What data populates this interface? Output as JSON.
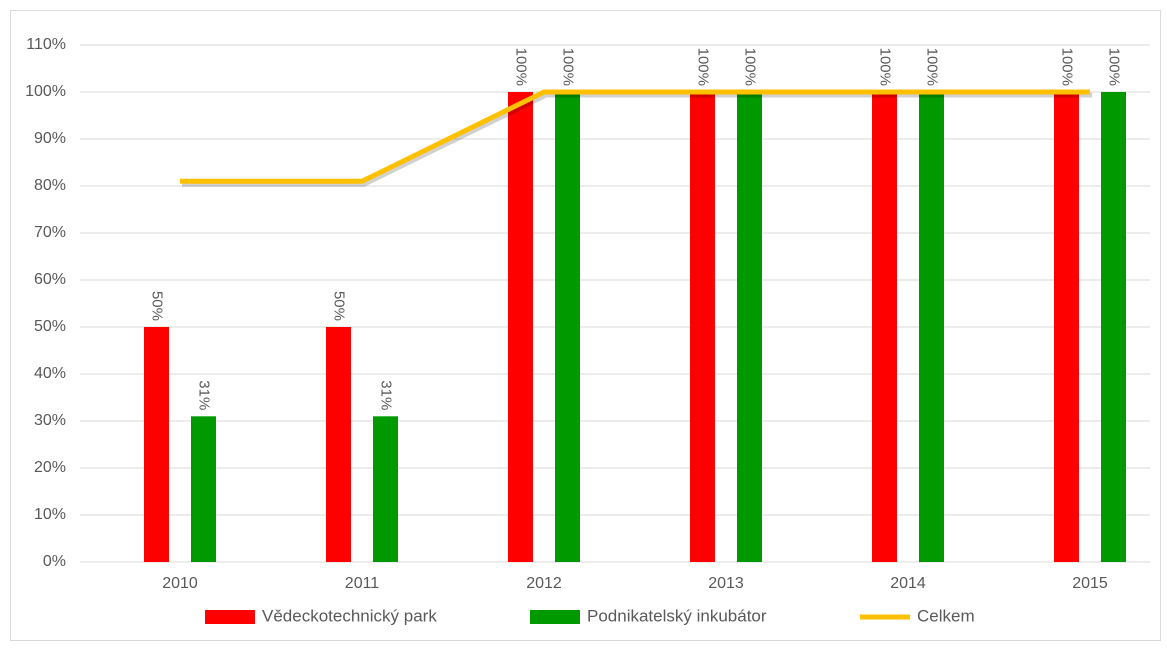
{
  "chart_data": {
    "type": "bar_line",
    "categories": [
      "2010",
      "2011",
      "2012",
      "2013",
      "2014",
      "2015"
    ],
    "series": [
      {
        "name": "Vědeckotechnický park",
        "type": "bar",
        "color": "#ff0000",
        "values": [
          50,
          50,
          100,
          100,
          100,
          100
        ],
        "value_labels": [
          "50%",
          "50%",
          "100%",
          "100%",
          "100%",
          "100%"
        ]
      },
      {
        "name": "Podnikatelský inkubátor",
        "type": "bar",
        "color": "#009900",
        "values": [
          31,
          31,
          100,
          100,
          100,
          100
        ],
        "value_labels": [
          "31%",
          "31%",
          "100%",
          "100%",
          "100%",
          "100%"
        ]
      },
      {
        "name": "Celkem",
        "type": "line",
        "color": "#ffc000",
        "values": [
          81,
          81,
          100,
          100,
          100,
          100
        ]
      }
    ],
    "ylim": [
      0,
      110
    ],
    "yticks": [
      {
        "value": 0,
        "label": "0%"
      },
      {
        "value": 10,
        "label": "10%"
      },
      {
        "value": 20,
        "label": "20%"
      },
      {
        "value": 30,
        "label": "30%"
      },
      {
        "value": 40,
        "label": "40%"
      },
      {
        "value": 50,
        "label": "50%"
      },
      {
        "value": 60,
        "label": "60%"
      },
      {
        "value": 70,
        "label": "70%"
      },
      {
        "value": 80,
        "label": "80%"
      },
      {
        "value": 90,
        "label": "90%"
      },
      {
        "value": 100,
        "label": "100%"
      },
      {
        "value": 110,
        "label": "110%"
      }
    ],
    "grid": true,
    "legend": "bottom"
  }
}
